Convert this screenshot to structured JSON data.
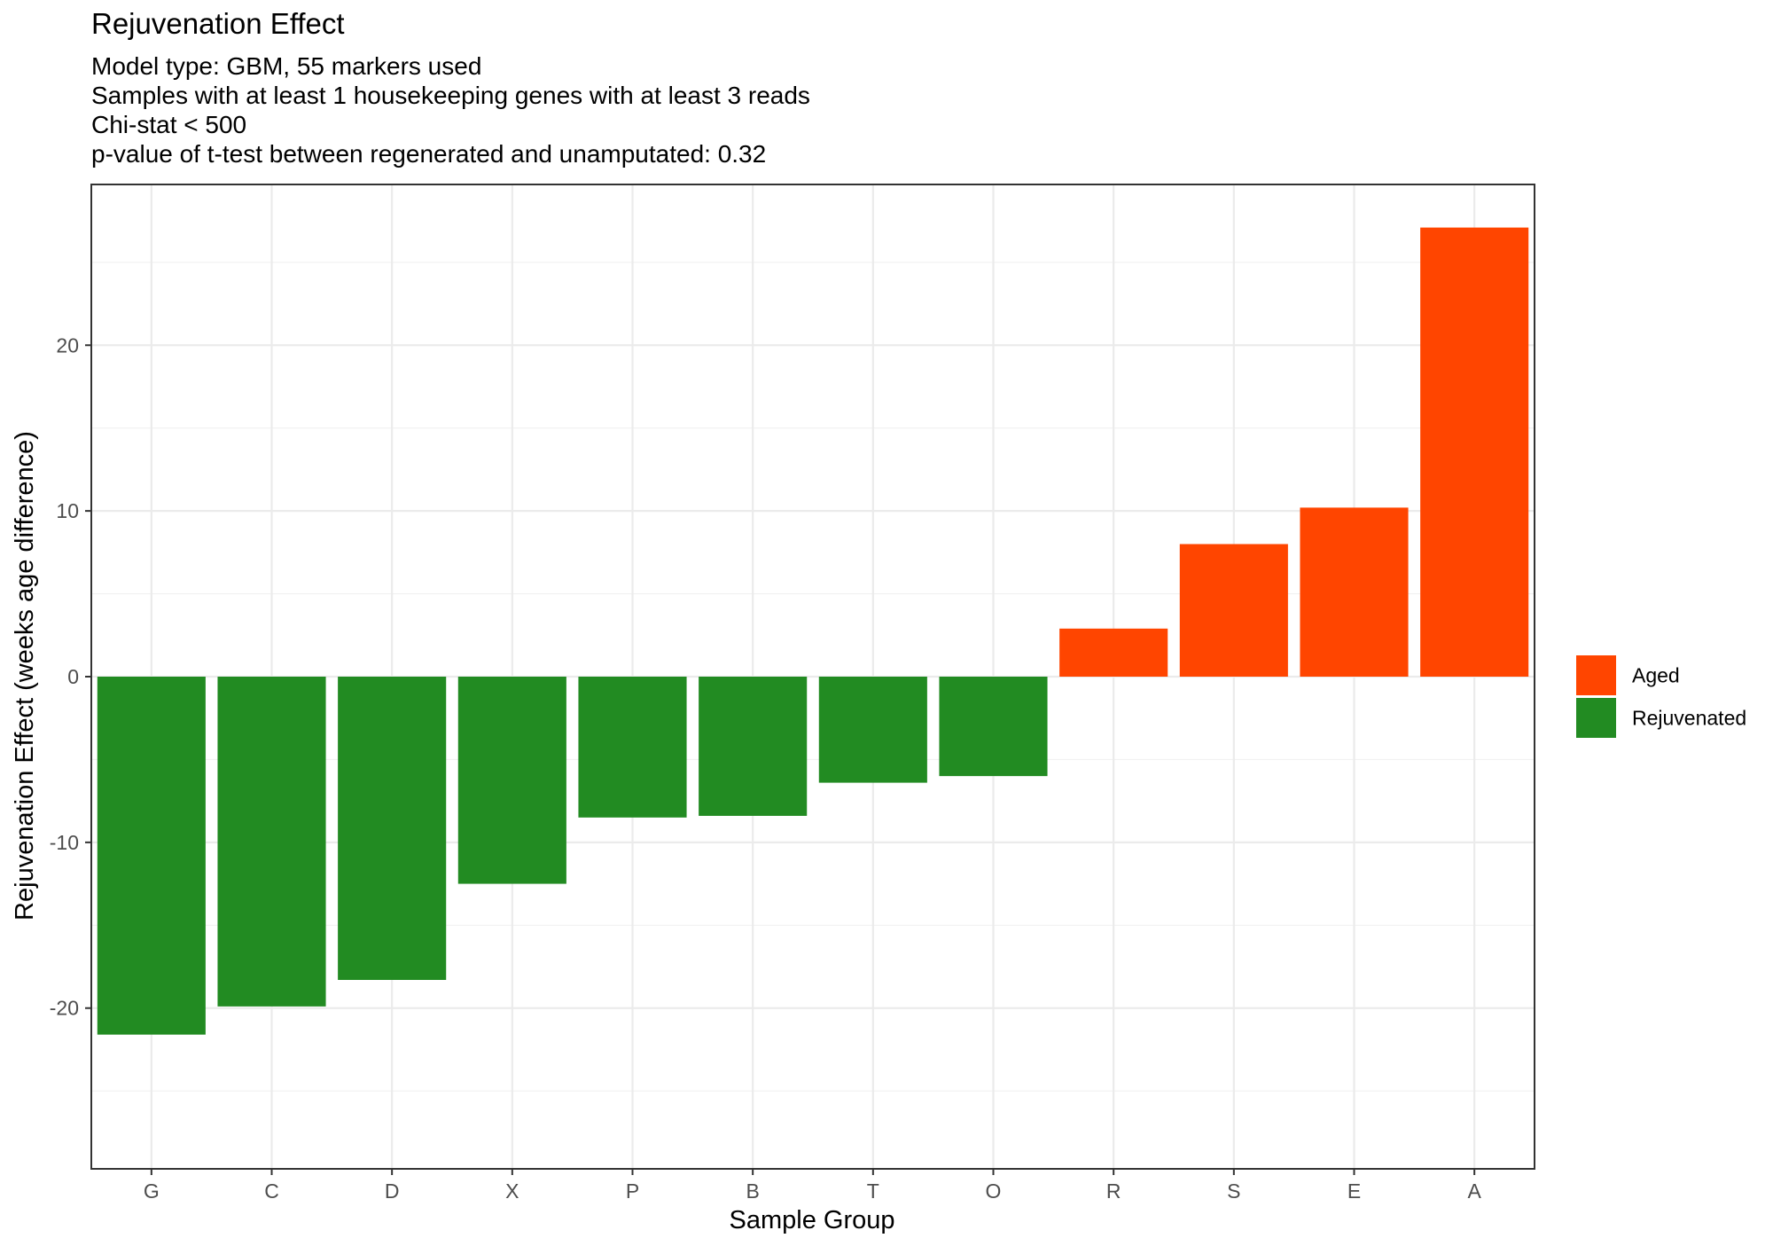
{
  "chart_data": {
    "type": "bar",
    "title": "Rejuvenation Effect",
    "subtitle_lines": [
      "Model type: GBM, 55 markers used",
      "Samples with at least 1 housekeeping genes with at least 3 reads",
      "Chi-stat < 500",
      "p-value of t-test between regenerated and unamputated: 0.32"
    ],
    "xlabel": "Sample Group",
    "ylabel": "Rejuvenation Effect (weeks age difference)",
    "categories": [
      "G",
      "C",
      "D",
      "X",
      "P",
      "B",
      "T",
      "O",
      "R",
      "S",
      "E",
      "A"
    ],
    "values": [
      -21.6,
      -19.9,
      -18.3,
      -12.5,
      -8.5,
      -8.4,
      -6.4,
      -6.0,
      2.9,
      8.0,
      10.2,
      27.1
    ],
    "groups": [
      "Rejuvenated",
      "Rejuvenated",
      "Rejuvenated",
      "Rejuvenated",
      "Rejuvenated",
      "Rejuvenated",
      "Rejuvenated",
      "Rejuvenated",
      "Aged",
      "Aged",
      "Aged",
      "Aged"
    ],
    "ylim": [
      -29.7,
      29.7
    ],
    "yticks": [
      -20,
      -10,
      0,
      10,
      20
    ],
    "ytick_labels": [
      "-20",
      "-10",
      "0",
      "10",
      "20"
    ],
    "grid": true,
    "legend": {
      "position": "right",
      "entries": [
        {
          "label": "Aged",
          "color": "#FF4500"
        },
        {
          "label": "Rejuvenated",
          "color": "#228B22"
        }
      ]
    },
    "colors": {
      "Aged": "#FF4500",
      "Rejuvenated": "#228B22"
    }
  }
}
